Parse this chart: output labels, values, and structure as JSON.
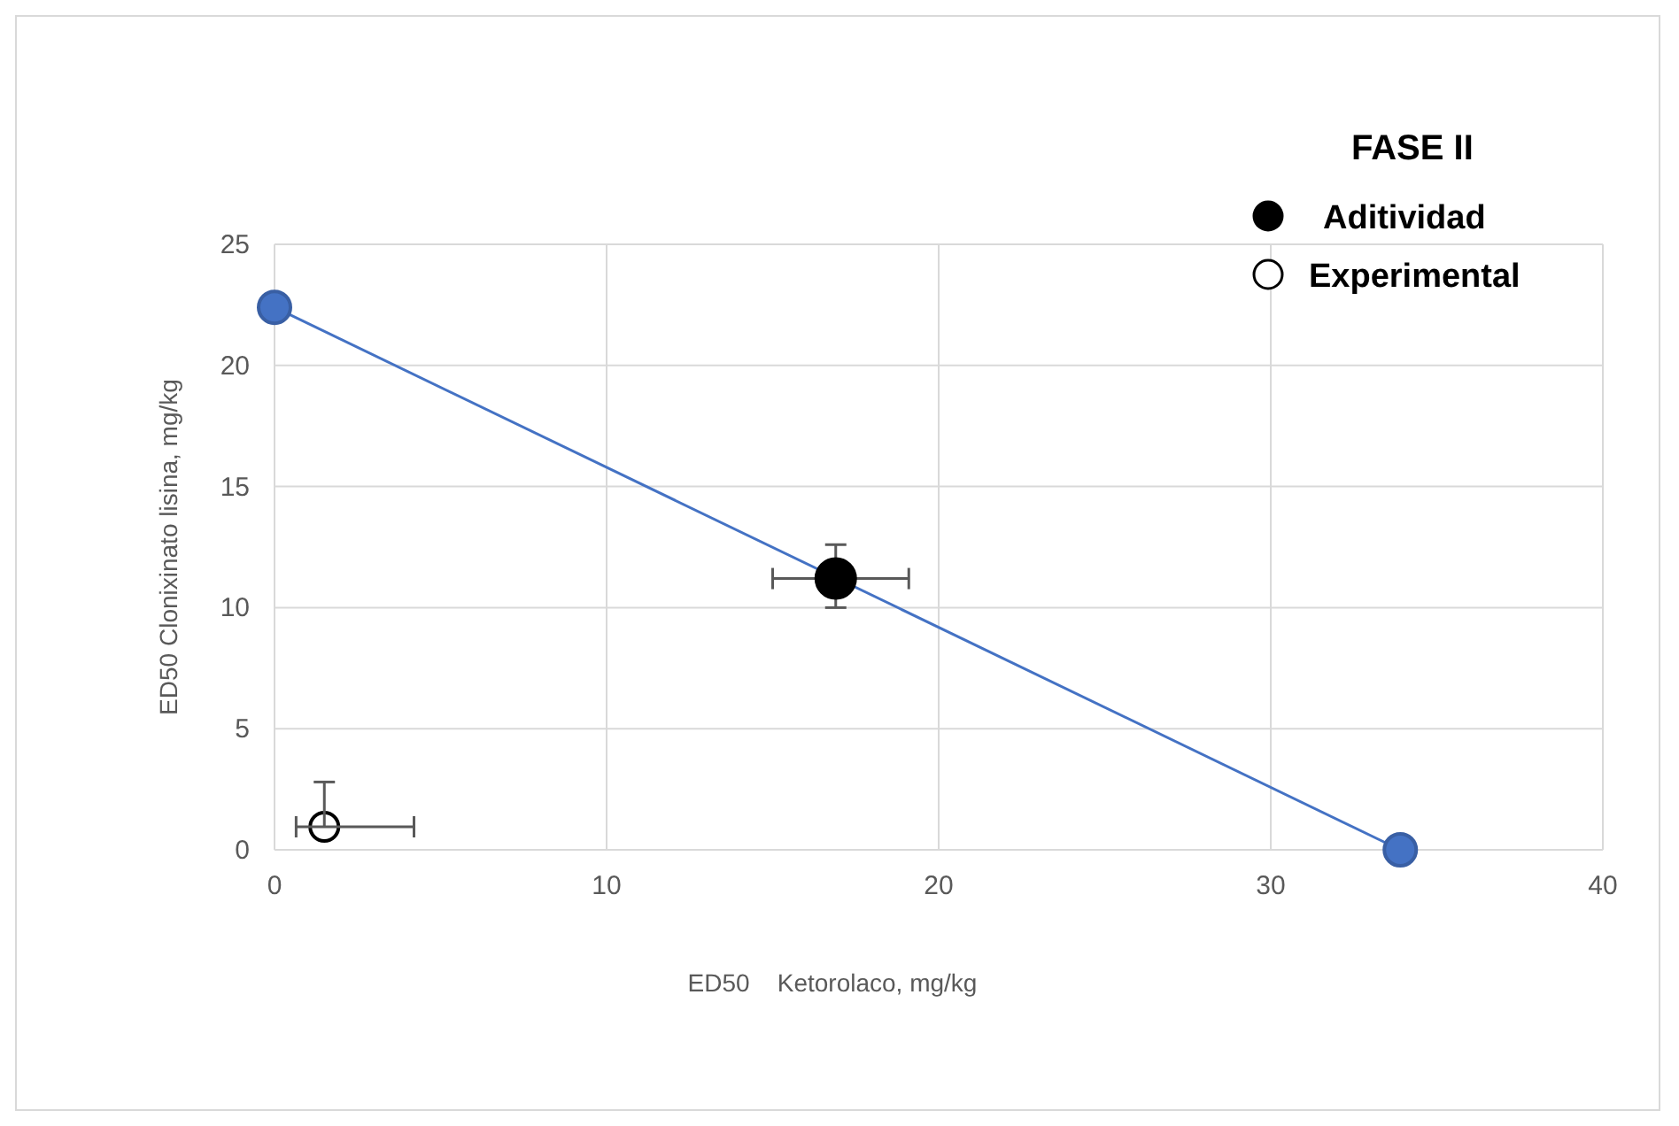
{
  "chart_data": {
    "type": "scatter",
    "xlabel": "ED50    Ketorolaco, mg/kg",
    "ylabel": "ED50 Clonixinato lisina, mg/kg",
    "legend_title": "FASE II",
    "legend": "top right",
    "grid": true,
    "xlim": [
      0,
      40
    ],
    "xticks": [
      0,
      10,
      20,
      30,
      40
    ],
    "ylim": [
      0,
      25
    ],
    "yticks": [
      0,
      5,
      10,
      15,
      20,
      25
    ],
    "series": [
      {
        "type": "line",
        "color": "#4472c4",
        "marker": "circle",
        "x": [
          0,
          33.9
        ],
        "values": [
          22.4,
          0
        ]
      },
      {
        "name": "Aditividad",
        "color": "#000000",
        "marker": "circle",
        "x": [
          16.9
        ],
        "values": [
          11.2
        ],
        "errors": [
          [
            10.0,
            12.6
          ]
        ],
        "xerrors": [
          [
            15.0,
            19.1
          ]
        ]
      },
      {
        "name": "Experimental",
        "color": "#ffffff",
        "marker": "circle",
        "x": [
          1.5
        ],
        "values": [
          0.95
        ],
        "errors": [
          [
            0.95,
            2.8
          ]
        ],
        "xerrors": [
          [
            0.65,
            4.2
          ]
        ]
      }
    ]
  }
}
